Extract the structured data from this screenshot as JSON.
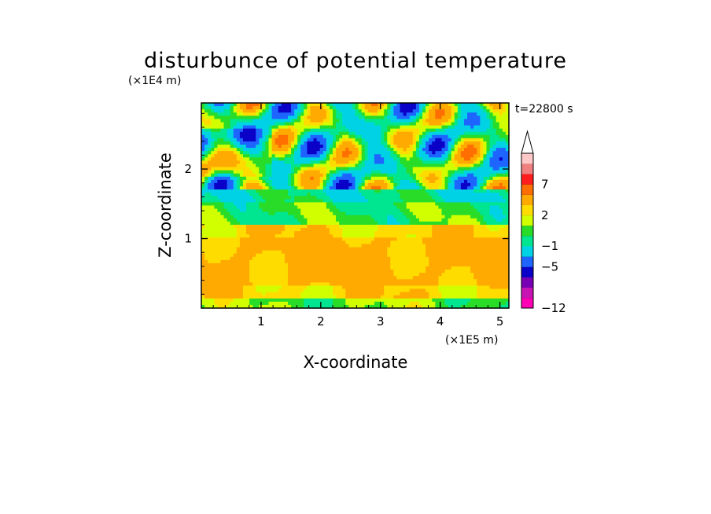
{
  "chart_data": {
    "type": "heatmap",
    "title": "disturbunce of potential temperature",
    "xlabel": "X-coordinate",
    "ylabel": "Z-coordinate",
    "x_unit": "(×1E5 m)",
    "y_unit": "(×1E4 m)",
    "time_label": "t=22800 s",
    "x_ticks": [
      "1",
      "2",
      "3",
      "4",
      "5"
    ],
    "y_ticks": [
      "1",
      "2"
    ],
    "xlim": [
      0,
      5.15
    ],
    "ylim": [
      0,
      2.95
    ],
    "colorbar": {
      "tick_labels": [
        "7",
        "2",
        "−1",
        "−5",
        "−12"
      ],
      "levels": [
        -12,
        -9,
        -7,
        -5,
        -3,
        -1,
        0,
        1,
        2,
        3,
        5,
        7,
        9,
        11
      ],
      "colors": [
        "#ff00b4",
        "#c814b4",
        "#7800b4",
        "#0a00c8",
        "#1e64ff",
        "#00d2e6",
        "#00e690",
        "#28dc28",
        "#d2ff00",
        "#ffdc00",
        "#ffaa00",
        "#ff6e00",
        "#ff1e1e",
        "#f08080",
        "#ffc8c8"
      ],
      "extend_max": true
    },
    "field_description": "Banded field: near-neutral positive values (yellow/orange) below z≈1.2, weak negative (green/cyan) 1.2–1.7, and alternating strong positive/negative wave cells (red/orange vs blue/purple) above ~1.7 tilted across x."
  }
}
